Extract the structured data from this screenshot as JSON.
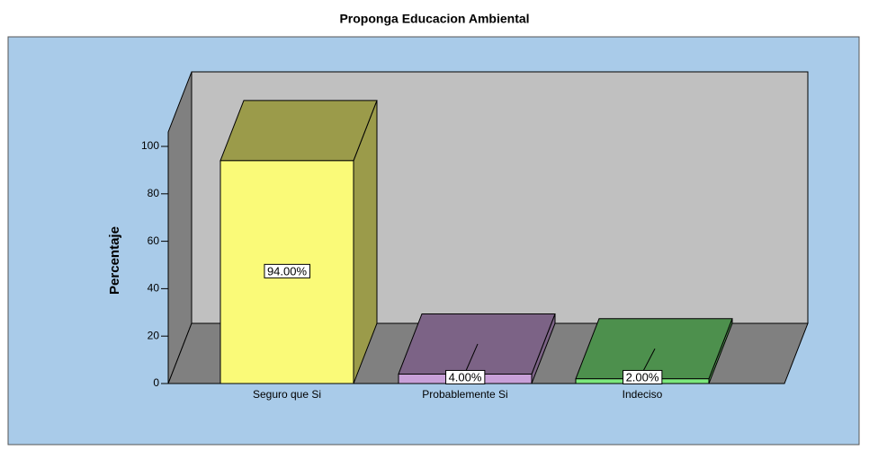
{
  "chart_data": {
    "type": "bar3d",
    "title": "Proponga Educacion Ambiental",
    "ylabel": "Percentaje",
    "categories": [
      "Seguro que Si",
      "Probablemente Si",
      "Indeciso"
    ],
    "values": [
      94,
      4,
      2
    ],
    "value_labels": [
      "94.00%",
      "4.00%",
      "2.00%"
    ],
    "colors": [
      "#fafa78",
      "#c8a0d8",
      "#7ce87c"
    ],
    "ylim": [
      0,
      100
    ],
    "yticks": [
      0,
      20,
      40,
      60,
      80,
      100
    ]
  }
}
